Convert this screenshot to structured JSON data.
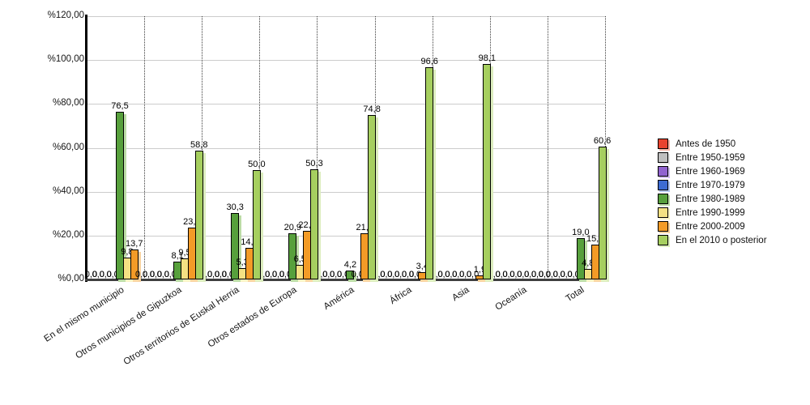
{
  "chart_data": {
    "type": "bar",
    "title": "",
    "categories": [
      "En el mismo municipio",
      "Otros municipios de Gipuzkoa",
      "Otros territorios de Euskal Herria",
      "Otros estados de Europa",
      "América",
      "África",
      "Asia",
      "Oceanía",
      "Total"
    ],
    "series": [
      {
        "name": "Antes de 1950",
        "color": "#e9432e",
        "shadow": "#f7b7a8",
        "values": [
          0,
          0,
          0,
          0,
          0,
          0,
          0,
          0,
          0
        ]
      },
      {
        "name": "Entre 1950-1959",
        "color": "#bfbfbf",
        "shadow": "#e5e5e5",
        "values": [
          0,
          0,
          0,
          0,
          0,
          0,
          0,
          0,
          0
        ]
      },
      {
        "name": "Entre 1960-1969",
        "color": "#9163cf",
        "shadow": "#d3c0ee",
        "values": [
          0,
          0,
          0,
          0,
          0,
          0,
          0,
          0,
          0
        ]
      },
      {
        "name": "Entre 1970-1979",
        "color": "#3c6bd2",
        "shadow": "#b4c8f0",
        "values": [
          0,
          0,
          0,
          0,
          0,
          0,
          0,
          0,
          0
        ]
      },
      {
        "name": "Entre 1980-1989",
        "color": "#57a03c",
        "shadow": "#bcdca6",
        "values": [
          76.5,
          8.1,
          30.3,
          20.9,
          4.2,
          0,
          0,
          0,
          19.0
        ]
      },
      {
        "name": "Entre 1990-1999",
        "color": "#f4e183",
        "shadow": "#faf3c6",
        "values": [
          9.8,
          9.5,
          5.3,
          6.5,
          0,
          0,
          0,
          0,
          4.8
        ]
      },
      {
        "name": "Entre 2000-2009",
        "color": "#f39b27",
        "shadow": "#f9d3a0",
        "values": [
          13.7,
          23.6,
          14.5,
          22.2,
          21.0,
          3.4,
          1.9,
          0,
          15.7
        ]
      },
      {
        "name": "En el 2010 o posterior",
        "color": "#a6cf5f",
        "shadow": "#dcedbe",
        "values": [
          0,
          58.8,
          50.0,
          50.3,
          74.8,
          96.6,
          98.1,
          0,
          60.6
        ]
      }
    ],
    "ylim": [
      0,
      120
    ],
    "ytick_values": [
      0,
      20,
      40,
      60,
      80,
      100,
      120
    ],
    "ytick_labels": [
      "%0,00",
      "%20,00",
      "%40,00",
      "%60,00",
      "%80,00",
      "%100,00",
      "%120,00"
    ],
    "zero_label": "0,0",
    "decimal_separator": ",",
    "grid": {
      "horizontal": "solid-light-gray",
      "vertical": "dotted-group-separators"
    },
    "legend_position": "right"
  }
}
